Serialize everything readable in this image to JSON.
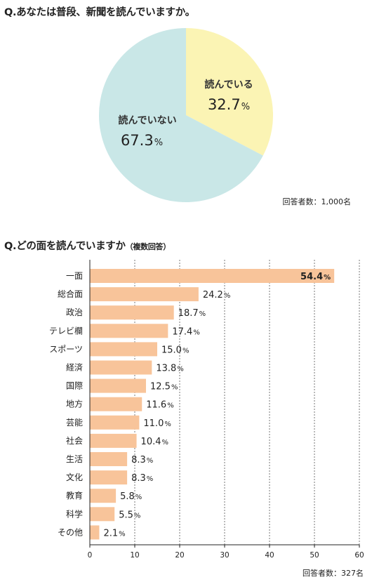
{
  "questions": {
    "q1": "Q.あなたは普段、新聞を読んでいますか。",
    "q1_respondents": "回答者数：1,000名",
    "q2": "Q.どの面を読んでいますか",
    "q2_note": "（複数回答）",
    "q2_respondents": "回答者数：327名"
  },
  "chart_data": [
    {
      "type": "pie",
      "title": "Q.あなたは普段、新聞を読んでいますか。",
      "labels": [
        "読んでいる",
        "読んでいない"
      ],
      "values": [
        32.7,
        67.3
      ],
      "unit": "%",
      "colors": [
        "#fbf4b4",
        "#c9e7e7"
      ],
      "start_angle_deg": 0,
      "direction": "clockwise"
    },
    {
      "type": "bar",
      "orientation": "horizontal",
      "title": "Q.どの面を読んでいますか（複数回答）",
      "categories": [
        "一面",
        "総合面",
        "政治",
        "テレビ欄",
        "スポーツ",
        "経済",
        "国際",
        "地方",
        "芸能",
        "社会",
        "生活",
        "文化",
        "教育",
        "科学",
        "その他"
      ],
      "values": [
        54.4,
        24.2,
        18.7,
        17.4,
        15.0,
        13.8,
        12.5,
        11.6,
        11.0,
        10.4,
        8.3,
        8.3,
        5.8,
        5.5,
        2.1
      ],
      "value_labels": [
        "54.4",
        "24.2",
        "18.7",
        "17.4",
        "15.0",
        "13.8",
        "12.5",
        "11.6",
        "11.0",
        "10.4",
        "8.3",
        "8.3",
        "5.8",
        "5.5",
        "2.1"
      ],
      "unit": "%",
      "xlim": [
        0,
        60
      ],
      "xticks": [
        0,
        10,
        20,
        30,
        40,
        50,
        60
      ],
      "bar_color": "#f8c49a",
      "grid": true
    }
  ]
}
